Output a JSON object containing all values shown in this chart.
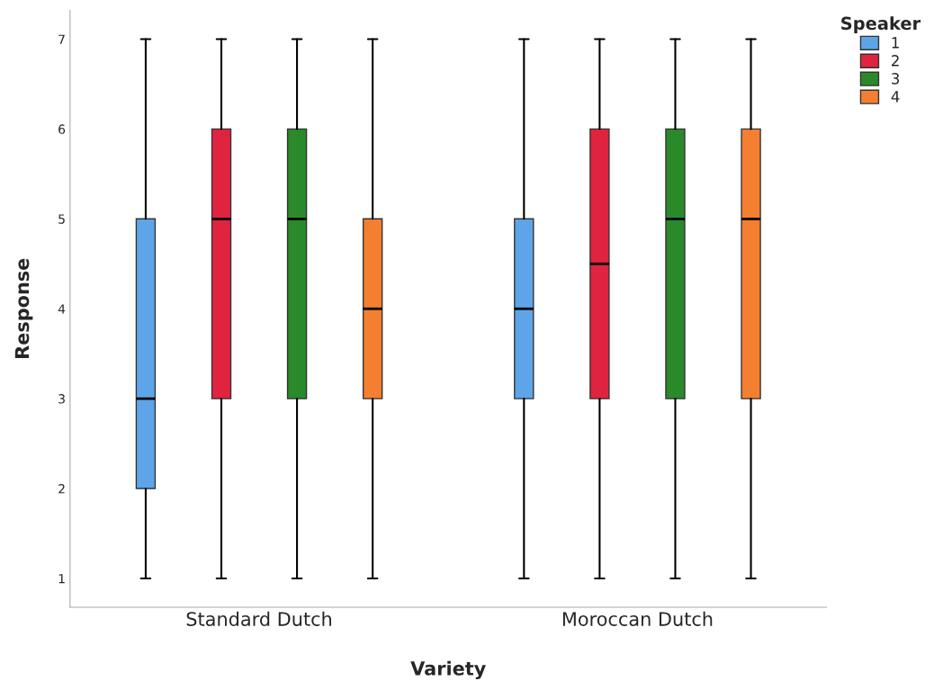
{
  "chart_data": {
    "type": "box",
    "xlabel": "Variety",
    "ylabel": "Response",
    "legend_title": "Speaker",
    "categories": [
      "Standard Dutch",
      "Moroccan Dutch"
    ],
    "ylim": [
      0.68,
      7.32
    ],
    "yticks": [
      1,
      2,
      3,
      4,
      5,
      6,
      7
    ],
    "grid": false,
    "legend": "top right",
    "series": [
      {
        "name": "1",
        "color": "#5da5e8",
        "boxes": [
          {
            "low": 1,
            "q1": 2,
            "median": 3,
            "q3": 5,
            "high": 7
          },
          {
            "low": 1,
            "q1": 3,
            "median": 4,
            "q3": 5,
            "high": 7
          }
        ]
      },
      {
        "name": "2",
        "color": "#e0243f",
        "boxes": [
          {
            "low": 1,
            "q1": 3,
            "median": 5,
            "q3": 6,
            "high": 7
          },
          {
            "low": 1,
            "q1": 3,
            "median": 4.5,
            "q3": 6,
            "high": 7
          }
        ]
      },
      {
        "name": "3",
        "color": "#2a8a2a",
        "boxes": [
          {
            "low": 1,
            "q1": 3,
            "median": 5,
            "q3": 6,
            "high": 7
          },
          {
            "low": 1,
            "q1": 3,
            "median": 5,
            "q3": 6,
            "high": 7
          }
        ]
      },
      {
        "name": "4",
        "color": "#f47f30",
        "boxes": [
          {
            "low": 1,
            "q1": 3,
            "median": 4,
            "q3": 5,
            "high": 7
          },
          {
            "low": 1,
            "q1": 3,
            "median": 5,
            "q3": 6,
            "high": 7
          }
        ]
      }
    ]
  }
}
